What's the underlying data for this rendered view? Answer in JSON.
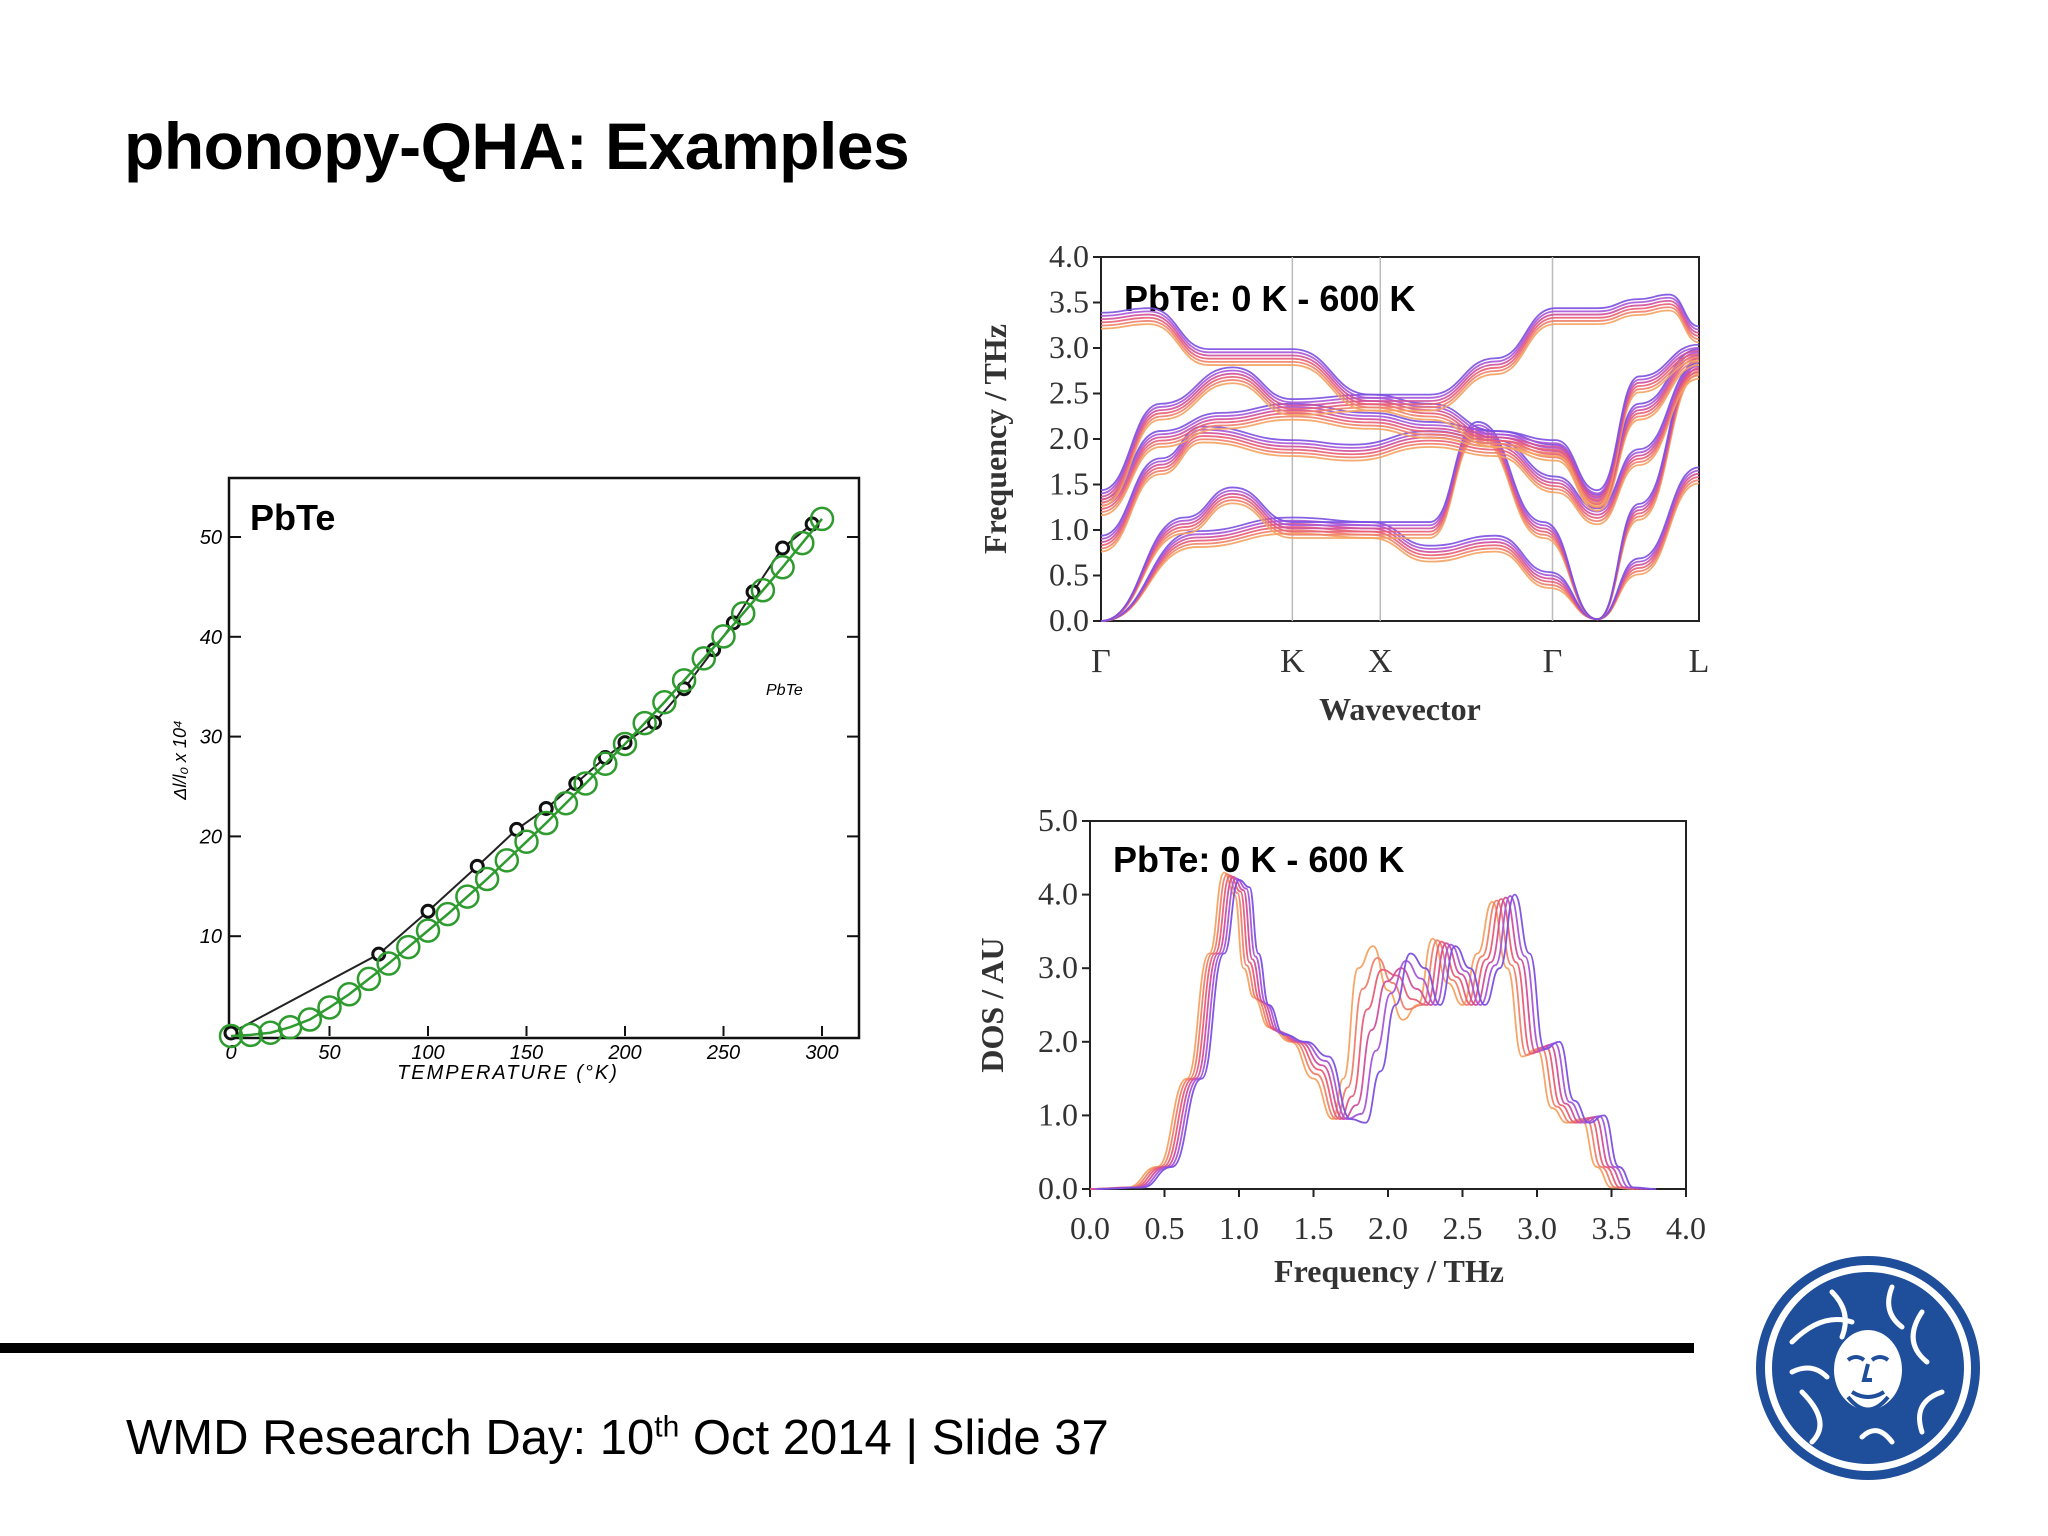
{
  "slide": {
    "title": "phonopy-QHA: Examples",
    "footer_main": "WMD Research Day: 10",
    "footer_sup": "th",
    "footer_rest": " Oct 2014 | Slide 37"
  },
  "colors": {
    "accent": "#1f4e9b",
    "green": "#2e9b2e",
    "black": "#111111"
  },
  "chart_data": [
    {
      "type": "scatter",
      "overlay_label": "PbTe",
      "inset_label": "PbTe",
      "xlabel": "TEMPERATURE (°K)",
      "ylabel": "Δl/l₀ x 10⁴",
      "xlim": [
        0,
        320
      ],
      "ylim": [
        0,
        55
      ],
      "xticks": [
        "0",
        "50",
        "100",
        "150",
        "200",
        "250",
        "300"
      ],
      "yticks": [
        "10",
        "20",
        "30",
        "40",
        "50"
      ],
      "series": [
        {
          "x": [
            0,
            75,
            100,
            125,
            145,
            160,
            175,
            190,
            200,
            215,
            230,
            245,
            255,
            265,
            280,
            295
          ],
          "y": [
            0.3,
            8.2,
            12.5,
            17,
            20.7,
            22.8,
            25.3,
            27.9,
            29.4,
            31.4,
            34.8,
            38.7,
            41.4,
            44.5,
            48.9,
            51.3
          ]
        },
        {
          "x": [
            0,
            10,
            20,
            30,
            40,
            50,
            60,
            70,
            80,
            90,
            100,
            110,
            120,
            130,
            140,
            150,
            160,
            170,
            180,
            190,
            200,
            210,
            220,
            230,
            240,
            250,
            260,
            270,
            280,
            290,
            300
          ],
          "y": [
            0,
            0.1,
            0.3,
            0.8,
            1.5,
            2.6,
            3.8,
            5.2,
            6.6,
            8.1,
            9.6,
            11.1,
            12.7,
            14.3,
            16.0,
            17.7,
            19.4,
            21.2,
            23.0,
            24.8,
            26.6,
            28.5,
            30.4,
            32.4,
            34.4,
            36.4,
            38.5,
            40.6,
            42.7,
            44.9,
            47.1
          ]
        }
      ]
    },
    {
      "type": "line",
      "overlay_label": "PbTe: 0 K - 600 K",
      "xlabel": "Wavevector",
      "ylabel": "Frequency / THz",
      "xticks": [
        "Γ",
        "K",
        "X",
        "Γ",
        "L"
      ],
      "yticks": [
        "0.0",
        "0.5",
        "1.0",
        "1.5",
        "2.0",
        "2.5",
        "3.0",
        "3.5",
        "4.0"
      ],
      "ylim": [
        0,
        4
      ],
      "bands": [
        {
          "name": "",
          "points": [
            [
              0,
              0
            ],
            [
              0.16,
              0.9
            ],
            [
              0.32,
              1.05
            ],
            [
              0.45,
              1.0
            ],
            [
              0.55,
              0.74
            ],
            [
              0.66,
              0.85
            ],
            [
              0.75,
              0.45
            ],
            [
              0.83,
              0.02
            ],
            [
              0.9,
              0.6
            ],
            [
              1.0,
              1.6
            ]
          ]
        },
        {
          "name": "",
          "points": [
            [
              0,
              0
            ],
            [
              0.14,
              1.05
            ],
            [
              0.22,
              1.38
            ],
            [
              0.32,
              1.0
            ],
            [
              0.45,
              1.0
            ],
            [
              0.55,
              1.0
            ],
            [
              0.63,
              2.1
            ],
            [
              0.74,
              1.0
            ],
            [
              0.83,
              0.02
            ],
            [
              0.9,
              1.2
            ],
            [
              1.0,
              2.8
            ]
          ]
        },
        {
          "name": "",
          "points": [
            [
              0,
              0.85
            ],
            [
              0.1,
              1.7
            ],
            [
              0.17,
              2.05
            ],
            [
              0.32,
              1.9
            ],
            [
              0.42,
              1.85
            ],
            [
              0.55,
              2.0
            ],
            [
              0.66,
              1.9
            ],
            [
              0.76,
              1.5
            ],
            [
              0.83,
              1.15
            ],
            [
              0.9,
              1.8
            ],
            [
              1.0,
              2.75
            ]
          ]
        },
        {
          "name": "",
          "points": [
            [
              0,
              1.25
            ],
            [
              0.1,
              2.0
            ],
            [
              0.2,
              2.2
            ],
            [
              0.32,
              2.3
            ],
            [
              0.45,
              2.2
            ],
            [
              0.55,
              2.1
            ],
            [
              0.66,
              2.0
            ],
            [
              0.76,
              1.85
            ],
            [
              0.83,
              1.3
            ],
            [
              0.9,
              2.3
            ],
            [
              1.0,
              2.9
            ]
          ]
        },
        {
          "name": "",
          "points": [
            [
              0,
              1.35
            ],
            [
              0.1,
              2.3
            ],
            [
              0.22,
              2.7
            ],
            [
              0.32,
              2.35
            ],
            [
              0.45,
              2.4
            ],
            [
              0.55,
              2.3
            ],
            [
              0.66,
              2.0
            ],
            [
              0.76,
              1.9
            ],
            [
              0.83,
              1.35
            ],
            [
              0.9,
              2.6
            ],
            [
              1.0,
              2.95
            ]
          ]
        },
        {
          "name": "",
          "points": [
            [
              0,
              3.3
            ],
            [
              0.08,
              3.35
            ],
            [
              0.18,
              2.9
            ],
            [
              0.32,
              2.9
            ],
            [
              0.45,
              2.4
            ],
            [
              0.55,
              2.4
            ],
            [
              0.66,
              2.8
            ],
            [
              0.76,
              3.35
            ],
            [
              0.83,
              3.35
            ],
            [
              0.9,
              3.45
            ],
            [
              0.95,
              3.5
            ],
            [
              1.0,
              3.15
            ]
          ]
        }
      ]
    },
    {
      "type": "line",
      "overlay_label": "PbTe: 0 K - 600 K",
      "xlabel": "Frequency / THz",
      "ylabel": "DOS / AU",
      "xlim": [
        0,
        4
      ],
      "ylim": [
        0,
        5
      ],
      "xticks": [
        "0.0",
        "0.5",
        "1.0",
        "1.5",
        "2.0",
        "2.5",
        "3.0",
        "3.5",
        "4.0"
      ],
      "yticks": [
        "0.0",
        "1.0",
        "2.0",
        "3.0",
        "4.0",
        "5.0"
      ],
      "series": [
        {
          "name": "",
          "x": [
            0,
            0.3,
            0.5,
            0.7,
            0.85,
            0.95,
            1.02,
            1.08,
            1.15,
            1.25,
            1.4,
            1.55,
            1.68,
            1.75,
            1.85,
            1.95,
            2.05,
            2.15,
            2.25,
            2.35,
            2.45,
            2.55,
            2.65,
            2.75,
            2.85,
            2.95,
            3.05,
            3.15,
            3.25,
            3.35,
            3.45,
            3.55,
            3.7
          ],
          "y": [
            0,
            0.02,
            0.3,
            1.5,
            3.2,
            4.3,
            4.0,
            3.0,
            2.6,
            2.2,
            2.0,
            1.5,
            0.95,
            1.5,
            3.0,
            3.3,
            2.7,
            2.3,
            2.5,
            3.4,
            2.8,
            2.5,
            3.2,
            3.9,
            3.0,
            1.8,
            1.9,
            1.1,
            0.9,
            0.95,
            0.3,
            0.02,
            0
          ]
        },
        {
          "name": "",
          "x": [
            0,
            0.3,
            0.5,
            0.7,
            0.85,
            0.95,
            1.02,
            1.08,
            1.15,
            1.25,
            1.4,
            1.55,
            1.7,
            1.8,
            1.9,
            2.0,
            2.1,
            2.2,
            2.3,
            2.4,
            2.5,
            2.6,
            2.7,
            2.8,
            2.9,
            3.0,
            3.1,
            3.2,
            3.3,
            3.4,
            3.5,
            3.6,
            3.75
          ],
          "y": [
            0,
            0.02,
            0.3,
            1.5,
            3.2,
            4.2,
            4.1,
            3.2,
            2.5,
            2.1,
            2.0,
            1.8,
            0.95,
            0.9,
            1.6,
            2.5,
            3.2,
            3.0,
            2.5,
            3.3,
            3.0,
            2.5,
            3.0,
            4.0,
            3.2,
            1.9,
            2.0,
            1.2,
            0.9,
            1.0,
            0.3,
            0.02,
            0
          ]
        }
      ]
    }
  ]
}
